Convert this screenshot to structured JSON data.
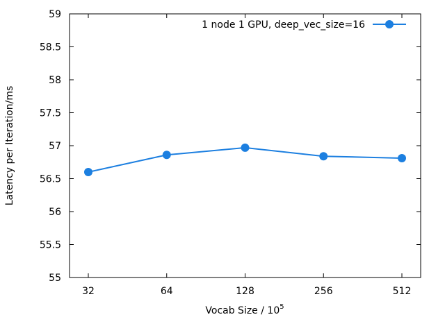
{
  "chart_data": {
    "type": "line",
    "title": "",
    "xlabel": "Vocab Size / 10",
    "xlabel_exponent": "5",
    "ylabel": "Latency per Iteration/ms",
    "categories": [
      "32",
      "64",
      "128",
      "256",
      "512"
    ],
    "series": [
      {
        "name": "1 node 1 GPU, deep_vec_size=16",
        "values": [
          56.6,
          56.86,
          56.97,
          56.84,
          56.81
        ],
        "color": "#1c7fe0"
      }
    ],
    "ylim": [
      55,
      59
    ],
    "yticks": [
      55,
      55.5,
      56,
      56.5,
      57,
      57.5,
      58,
      58.5,
      59
    ],
    "ytick_labels": [
      "55",
      "55.5",
      "56",
      "56.5",
      "57",
      "57.5",
      "58",
      "58.5",
      "59"
    ],
    "grid": false,
    "legend_position": "top-right"
  }
}
